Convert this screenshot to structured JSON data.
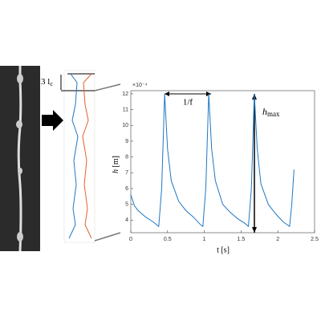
{
  "chart_data": {
    "type": "line",
    "x_label": "t [s]",
    "y_label_symbol": "h",
    "y_label_unit": "[m]",
    "y_exponent": "×10⁻⁴",
    "x": [
      0,
      0.05,
      0.1,
      0.2,
      0.3,
      0.38,
      0.42,
      0.46,
      0.5,
      0.55,
      0.65,
      0.75,
      0.85,
      0.95,
      0.98,
      1.02,
      1.06,
      1.1,
      1.15,
      1.25,
      1.35,
      1.45,
      1.55,
      1.6,
      1.64,
      1.68,
      1.72,
      1.77,
      1.87,
      1.97,
      2.07,
      2.16,
      2.19,
      2.22
    ],
    "series": [
      {
        "color": "#1f77c4",
        "values": [
          5.6,
          4.9,
          4.6,
          4.2,
          3.9,
          3.6,
          6,
          12,
          8.5,
          6.5,
          5.2,
          4.6,
          4.2,
          3.7,
          3.6,
          6,
          12,
          8.5,
          6.5,
          5.0,
          4.5,
          4.1,
          3.8,
          3.6,
          6,
          12,
          8.5,
          6.3,
          5.0,
          4.4,
          3.9,
          3.6,
          5,
          7.2
        ]
      }
    ],
    "xlim": [
      0,
      2.5
    ],
    "xticks": [
      0,
      0.5,
      1,
      1.5,
      2,
      2.5
    ],
    "ylim": [
      3.2,
      12.2
    ],
    "yticks": [
      4,
      5,
      6,
      7,
      8,
      9,
      10,
      11,
      12
    ],
    "annotations": {
      "period": "1/f",
      "hmax_symbol": "h",
      "hmax_sub": "max",
      "length_prefix": "3 l",
      "length_sub": "c"
    }
  }
}
